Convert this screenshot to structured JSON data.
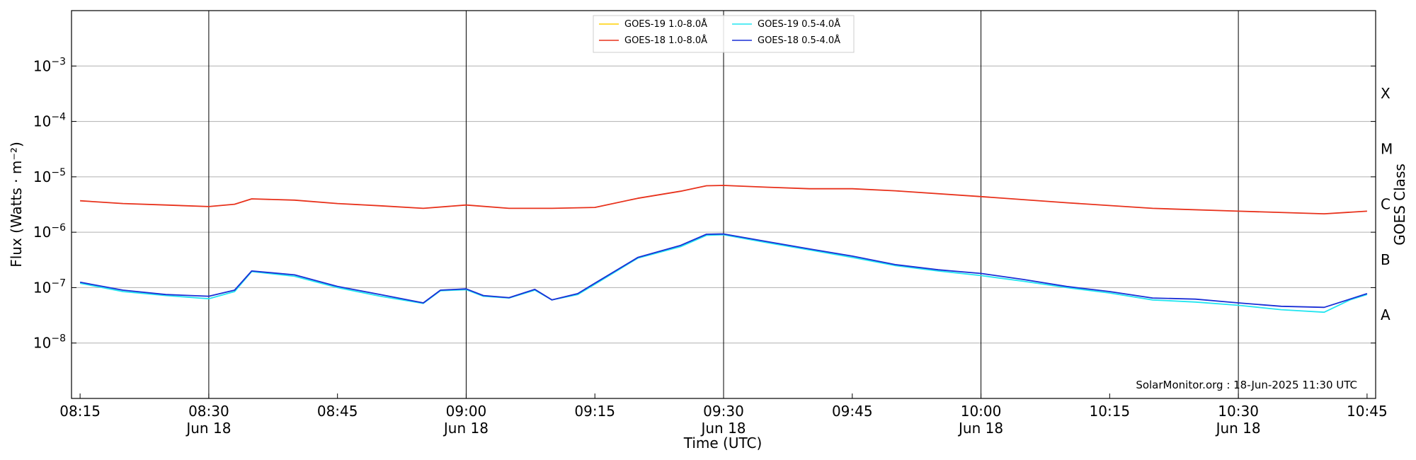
{
  "chart_data": {
    "type": "line",
    "xlabel": "Time (UTC)",
    "ylabel": "Flux (Watts · m⁻²)",
    "ylabel_right": "GOES Class",
    "credit": "SolarMonitor.org : 18-Jun-2025 11:30 UTC",
    "y_scale": "log",
    "ylim": [
      1e-09,
      0.01
    ],
    "xlim": [
      "2025-06-18 08:14",
      "2025-06-18 10:46"
    ],
    "grid": "horizontal at decades, vertical at half-hours",
    "legend_placement": "top-center",
    "y_ticks": [
      {
        "value": 1e-08,
        "base": "10",
        "exp": "−8"
      },
      {
        "value": 1e-07,
        "base": "10",
        "exp": "−7"
      },
      {
        "value": 1e-06,
        "base": "10",
        "exp": "−6"
      },
      {
        "value": 1e-05,
        "base": "10",
        "exp": "−5"
      },
      {
        "value": 0.0001,
        "base": "10",
        "exp": "−4"
      },
      {
        "value": 0.001,
        "base": "10",
        "exp": "−3"
      }
    ],
    "class_labels": [
      {
        "label": "A",
        "value": 3.2e-08
      },
      {
        "label": "B",
        "value": 3.2e-07
      },
      {
        "label": "C",
        "value": 3.2e-06
      },
      {
        "label": "M",
        "value": 3.2e-05
      },
      {
        "label": "X",
        "value": 0.00032
      }
    ],
    "x_ticks": [
      {
        "time": "08:15",
        "label": "08:15",
        "date": ""
      },
      {
        "time": "08:30",
        "label": "08:30",
        "date": "Jun 18"
      },
      {
        "time": "08:45",
        "label": "08:45",
        "date": ""
      },
      {
        "time": "09:00",
        "label": "09:00",
        "date": "Jun 18"
      },
      {
        "time": "09:15",
        "label": "09:15",
        "date": ""
      },
      {
        "time": "09:30",
        "label": "09:30",
        "date": "Jun 18"
      },
      {
        "time": "09:45",
        "label": "09:45",
        "date": ""
      },
      {
        "time": "10:00",
        "label": "10:00",
        "date": "Jun 18"
      },
      {
        "time": "10:15",
        "label": "10:15",
        "date": ""
      },
      {
        "time": "10:30",
        "label": "10:30",
        "date": "Jun 18"
      },
      {
        "time": "10:45",
        "label": "10:45",
        "date": ""
      }
    ],
    "series": [
      {
        "name": "GOES-19 1.0-8.0Å",
        "color": "#ffd000",
        "x": [],
        "values": []
      },
      {
        "name": "GOES-19 0.5-4.0Å",
        "color": "#22e5f0",
        "x": [
          "08:15",
          "08:20",
          "08:25",
          "08:30",
          "08:33",
          "08:35",
          "08:40",
          "08:45",
          "08:50",
          "08:55",
          "08:57",
          "09:00",
          "09:02",
          "09:05",
          "09:08",
          "09:10",
          "09:13",
          "09:15",
          "09:20",
          "09:25",
          "09:28",
          "09:30",
          "09:35",
          "09:40",
          "09:45",
          "09:50",
          "09:55",
          "10:00",
          "10:05",
          "10:10",
          "10:15",
          "10:20",
          "10:25",
          "10:30",
          "10:35",
          "10:40",
          "10:43",
          "10:45"
        ],
        "values": [
          1.2e-07,
          8.5e-08,
          7.2e-08,
          6.3e-08,
          8.5e-08,
          1.95e-07,
          1.6e-07,
          1e-07,
          7e-08,
          5.2e-08,
          8.8e-08,
          9.2e-08,
          7e-08,
          6.5e-08,
          9e-08,
          6e-08,
          7.5e-08,
          1.15e-07,
          3.4e-07,
          5.5e-07,
          8.8e-07,
          9e-07,
          6.5e-07,
          4.8e-07,
          3.5e-07,
          2.5e-07,
          2e-07,
          1.65e-07,
          1.3e-07,
          1e-07,
          8e-08,
          6e-08,
          5.5e-08,
          4.8e-08,
          4e-08,
          3.6e-08,
          6e-08,
          7.5e-08
        ]
      },
      {
        "name": "GOES-18 1.0-8.0Å",
        "color": "#e8321c",
        "x": [
          "08:15",
          "08:20",
          "08:25",
          "08:30",
          "08:33",
          "08:35",
          "08:40",
          "08:45",
          "08:50",
          "08:55",
          "09:00",
          "09:05",
          "09:10",
          "09:15",
          "09:20",
          "09:25",
          "09:28",
          "09:30",
          "09:35",
          "09:40",
          "09:45",
          "09:50",
          "10:00",
          "10:10",
          "10:20",
          "10:30",
          "10:40",
          "10:45"
        ],
        "values": [
          3.7e-06,
          3.3e-06,
          3.1e-06,
          2.9e-06,
          3.2e-06,
          4e-06,
          3.8e-06,
          3.3e-06,
          3e-06,
          2.7e-06,
          3.1e-06,
          2.7e-06,
          2.7e-06,
          2.8e-06,
          4.1e-06,
          5.5e-06,
          6.9e-06,
          7e-06,
          6.5e-06,
          6.1e-06,
          6.1e-06,
          5.6e-06,
          4.4e-06,
          3.4e-06,
          2.7e-06,
          2.4e-06,
          2.15e-06,
          2.4e-06
        ]
      },
      {
        "name": "GOES-18 0.5-4.0Å",
        "color": "#1a2fd6",
        "x": [
          "08:15",
          "08:20",
          "08:25",
          "08:30",
          "08:33",
          "08:35",
          "08:40",
          "08:45",
          "08:50",
          "08:55",
          "08:57",
          "09:00",
          "09:02",
          "09:05",
          "09:08",
          "09:10",
          "09:13",
          "09:15",
          "09:20",
          "09:25",
          "09:28",
          "09:30",
          "09:35",
          "09:40",
          "09:45",
          "09:50",
          "09:55",
          "10:00",
          "10:05",
          "10:10",
          "10:15",
          "10:20",
          "10:25",
          "10:30",
          "10:35",
          "10:40",
          "10:43",
          "10:45"
        ],
        "values": [
          1.25e-07,
          9e-08,
          7.5e-08,
          7e-08,
          9e-08,
          2e-07,
          1.7e-07,
          1.05e-07,
          7.5e-08,
          5.3e-08,
          9e-08,
          9.5e-08,
          7.2e-08,
          6.6e-08,
          9.3e-08,
          6e-08,
          7.8e-08,
          1.2e-07,
          3.5e-07,
          5.8e-07,
          9.2e-07,
          9.3e-07,
          6.8e-07,
          5e-07,
          3.7e-07,
          2.6e-07,
          2.1e-07,
          1.8e-07,
          1.4e-07,
          1.05e-07,
          8.5e-08,
          6.5e-08,
          6.2e-08,
          5.3e-08,
          4.6e-08,
          4.4e-08,
          6.2e-08,
          7.8e-08
        ]
      }
    ]
  }
}
